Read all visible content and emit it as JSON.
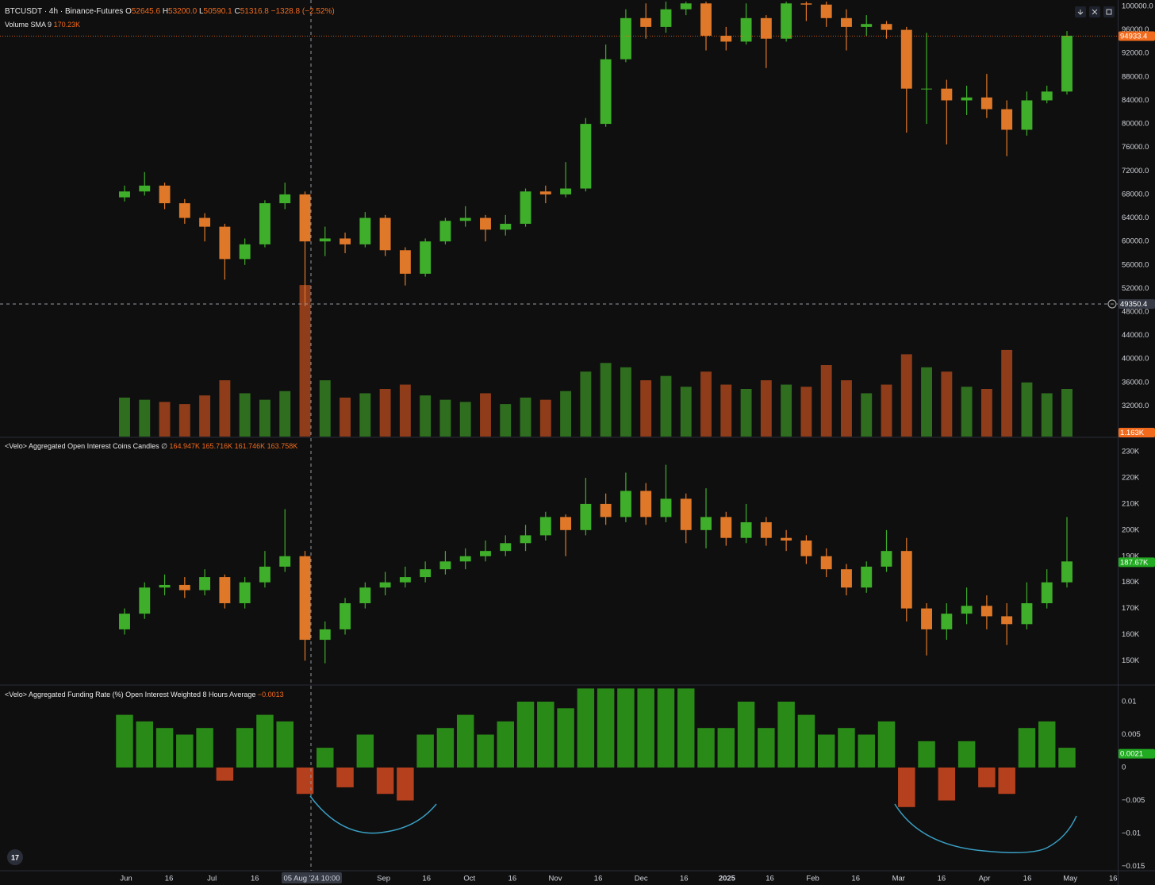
{
  "chart_data": [
    {
      "type": "candlestick",
      "title": "BTCUSDT · 4h · Binance-Futures",
      "ohlc": [
        {
          "key": "O",
          "value": "52645.6"
        },
        {
          "key": "H",
          "value": "53200.0"
        },
        {
          "key": "L",
          "value": "50590.1"
        },
        {
          "key": "C",
          "value": "51316.8"
        }
      ],
      "change": "−1328.8 (−2.52%)",
      "open": [
        67500,
        68500,
        69500,
        66500,
        64000,
        62500,
        57000,
        59500,
        66500,
        68000,
        60000,
        60500,
        59500,
        64000,
        58500,
        54500,
        60000,
        63500,
        64000,
        62000,
        63000,
        68500,
        68000,
        69000,
        80000,
        91000,
        98000,
        96500,
        99500,
        100500,
        95000,
        94000,
        98000,
        94500,
        100500,
        100300,
        98000,
        96500,
        97000,
        96000,
        86000,
        86000,
        84000,
        84500,
        82500,
        79000,
        84000,
        85500
      ],
      "high": [
        69500,
        71800,
        70000,
        67200,
        64800,
        63000,
        60500,
        67000,
        70000,
        68500,
        62500,
        61500,
        65000,
        64500,
        59000,
        60500,
        64000,
        66000,
        64500,
        64500,
        69000,
        69500,
        73500,
        81000,
        93500,
        99500,
        100500,
        100800,
        100800,
        100800,
        96500,
        100500,
        98500,
        100800,
        100800,
        100800,
        99500,
        98500,
        97500,
        96500,
        95500,
        87500,
        86500,
        88500,
        84000,
        85500,
        86500,
        95800
      ],
      "low": [
        66800,
        67800,
        65500,
        63000,
        60000,
        53500,
        56000,
        59000,
        65500,
        49000,
        57500,
        58000,
        59000,
        57500,
        52500,
        54000,
        59500,
        62500,
        60000,
        61000,
        62500,
        66500,
        67500,
        68500,
        79500,
        90500,
        94500,
        95500,
        98500,
        92500,
        92500,
        93500,
        89500,
        94000,
        97500,
        96500,
        92500,
        95000,
        94500,
        78500,
        80000,
        76500,
        81500,
        81000,
        74500,
        78000,
        83500,
        85000
      ],
      "close": [
        68500,
        69500,
        66500,
        64000,
        62500,
        57000,
        59500,
        66500,
        68000,
        60000,
        60500,
        59500,
        64000,
        58500,
        54500,
        60000,
        63500,
        64000,
        62000,
        63000,
        68500,
        68000,
        69000,
        80000,
        91000,
        98000,
        96500,
        99500,
        100500,
        95000,
        94000,
        98000,
        94500,
        100500,
        100300,
        98000,
        96500,
        97000,
        96000,
        86000,
        86000,
        84000,
        84500,
        82500,
        79000,
        84000,
        85500,
        95000
      ],
      "up_color": "#3fae2a",
      "down_color": "#e0782a",
      "ylim": [
        26660,
        100810
      ],
      "yticks": [
        {
          "value": 100000,
          "label": "100000.0"
        },
        {
          "value": 96000,
          "label": "96000.0"
        },
        {
          "value": 92000,
          "label": "92000.0"
        },
        {
          "value": 88000,
          "label": "88000.0"
        },
        {
          "value": 84000,
          "label": "84000.0"
        },
        {
          "value": 80000,
          "label": "80000.0"
        },
        {
          "value": 76000,
          "label": "76000.0"
        },
        {
          "value": 72000,
          "label": "72000.0"
        },
        {
          "value": 68000,
          "label": "68000.0"
        },
        {
          "value": 64000,
          "label": "64000.0"
        },
        {
          "value": 60000,
          "label": "60000.0"
        },
        {
          "value": 56000,
          "label": "56000.0"
        },
        {
          "value": 52000,
          "label": "52000.0"
        },
        {
          "value": 48000,
          "label": "48000.0"
        },
        {
          "value": 44000,
          "label": "44000.0"
        },
        {
          "value": 40000,
          "label": "40000.0"
        },
        {
          "value": 36000,
          "label": "36000.0"
        },
        {
          "value": 32000,
          "label": "32000.0"
        }
      ],
      "last_value": 94933.4,
      "last_color": "#f26b1d",
      "crosshair_value": 49350.4,
      "volume": {
        "type": "bar",
        "name": "Volume SMA 9",
        "sma": "170.23K",
        "values": [
          180,
          170,
          160,
          150,
          190,
          260,
          200,
          170,
          210,
          700,
          260,
          180,
          200,
          220,
          240,
          190,
          170,
          160,
          200,
          150,
          180,
          170,
          210,
          300,
          340,
          320,
          260,
          280,
          230,
          300,
          240,
          220,
          260,
          240,
          230,
          330,
          260,
          200,
          240,
          380,
          320,
          300,
          230,
          220,
          400,
          250,
          200,
          220
        ],
        "ylim": [
          0,
          1100
        ],
        "up_color": "#2f6e1f",
        "down_color": "#8e3c1a",
        "last_value": {
          "value": 1.163,
          "label": "1.163K"
        },
        "last_color": "#f26b1d"
      }
    },
    {
      "type": "candlestick",
      "title": "<Velo> Aggregated Open Interest Coins Candles",
      "ohlc_values": [
        "164.947K",
        "165.716K",
        "161.746K",
        "163.758K"
      ],
      "open": [
        162,
        168,
        178,
        179,
        177,
        182,
        172,
        180,
        186,
        190,
        158,
        162,
        172,
        178,
        180,
        182,
        185,
        188,
        190,
        192,
        195,
        198,
        205,
        200,
        210,
        205,
        215,
        205,
        212,
        200,
        205,
        197,
        203,
        197,
        196,
        190,
        185,
        178,
        186,
        192,
        170,
        162,
        168,
        171,
        167,
        164,
        172,
        180
      ],
      "high": [
        170,
        180,
        183,
        182,
        185,
        183,
        182,
        192,
        208,
        192,
        165,
        174,
        180,
        184,
        186,
        188,
        192,
        193,
        196,
        198,
        202,
        207,
        206,
        220,
        214,
        222,
        218,
        225,
        214,
        216,
        207,
        210,
        205,
        200,
        198,
        193,
        187,
        188,
        200,
        197,
        172,
        172,
        178,
        175,
        172,
        180,
        185,
        205
      ],
      "low": [
        160,
        166,
        175,
        174,
        175,
        170,
        170,
        178,
        184,
        150,
        149,
        160,
        170,
        175,
        178,
        180,
        183,
        185,
        188,
        190,
        192,
        196,
        190,
        198,
        202,
        203,
        202,
        203,
        195,
        193,
        194,
        195,
        194,
        192,
        187,
        182,
        175,
        176,
        184,
        165,
        152,
        158,
        164,
        162,
        156,
        162,
        170,
        178
      ],
      "close": [
        168,
        178,
        179,
        177,
        182,
        172,
        180,
        186,
        190,
        158,
        162,
        172,
        178,
        180,
        182,
        185,
        188,
        190,
        192,
        195,
        198,
        205,
        200,
        210,
        205,
        215,
        205,
        212,
        200,
        205,
        197,
        203,
        197,
        196,
        190,
        185,
        178,
        186,
        192,
        170,
        162,
        168,
        171,
        167,
        164,
        172,
        180,
        188
      ],
      "up_color": "#3fae2a",
      "down_color": "#e0782a",
      "ylim": [
        140.7,
        235.5
      ],
      "yticks": [
        {
          "value": 230,
          "label": "230K"
        },
        {
          "value": 220,
          "label": "220K"
        },
        {
          "value": 210,
          "label": "210K"
        },
        {
          "value": 200,
          "label": "200K"
        },
        {
          "value": 190,
          "label": "190K"
        },
        {
          "value": 180,
          "label": "180K"
        },
        {
          "value": 170,
          "label": "170K"
        },
        {
          "value": 160,
          "label": "160K"
        },
        {
          "value": 150,
          "label": "150K"
        }
      ],
      "last_value": {
        "value": 187.67,
        "label": "187.67K"
      },
      "last_color": "#22ab22"
    },
    {
      "type": "bar",
      "title": "<Velo> Aggregated Funding Rate (%) Open Interest Weighted 8 Hours Average",
      "current": "−0.0013",
      "values": [
        0.008,
        0.007,
        0.006,
        0.005,
        0.006,
        -0.002,
        0.006,
        0.008,
        0.007,
        -0.004,
        0.003,
        -0.003,
        0.005,
        -0.004,
        -0.005,
        0.005,
        0.006,
        0.008,
        0.005,
        0.007,
        0.01,
        0.01,
        0.009,
        0.012,
        0.012,
        0.012,
        0.012,
        0.012,
        0.012,
        0.006,
        0.006,
        0.01,
        0.006,
        0.01,
        0.008,
        0.005,
        0.006,
        0.005,
        0.007,
        -0.006,
        0.004,
        -0.005,
        0.004,
        -0.003,
        -0.004,
        0.006,
        0.007,
        0.003
      ],
      "up_color": "#2a8a17",
      "down_color": "#b5401d",
      "ylim": [
        -0.01566,
        0.01253
      ],
      "yticks": [
        0.01,
        0.005,
        0,
        {
          "value": -0.005,
          "label": "−0.005"
        },
        {
          "value": -0.01,
          "label": "−0.01"
        },
        {
          "value": -0.015,
          "label": "−0.015"
        }
      ],
      "last_value": 0.0021,
      "last_color": "#22ab22"
    }
  ],
  "x_axis": {
    "ticks": [
      "Jun",
      "16",
      "Jul",
      "16",
      null,
      null,
      "Sep",
      "16",
      "Oct",
      "16",
      "Nov",
      "16",
      "Dec",
      "16",
      "2025",
      "16",
      "Feb",
      "16",
      "Mar",
      "16",
      "Apr",
      "16",
      "May",
      "16"
    ],
    "crosshair_label": "05 Aug '24   10:00"
  }
}
